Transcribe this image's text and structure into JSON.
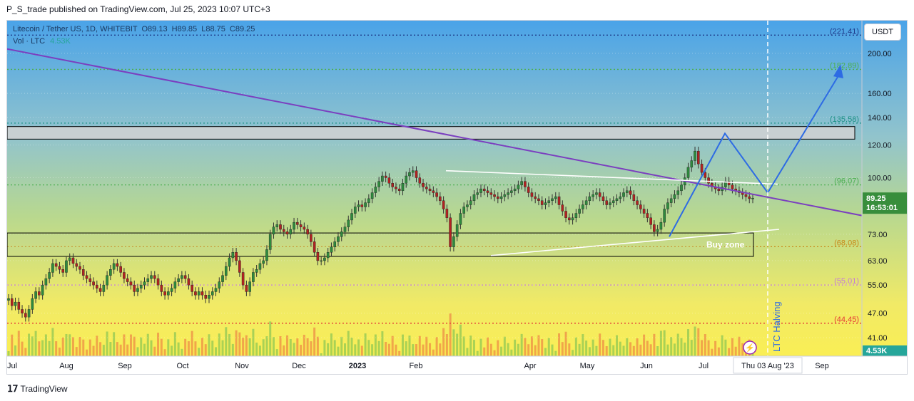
{
  "header": {
    "published_by": "P_S_trade published on TradingView.com, Jul 25, 2023 10:07 UTC+3"
  },
  "legend": {
    "symbol": "Litecoin / Tether US, 1D, WHITEBIT",
    "open": "O89.13",
    "high": "H89.85",
    "low": "L88.75",
    "close": "C89.25",
    "vol_label": "Vol · LTC",
    "vol_value": "4.53K"
  },
  "currency_button": "USDT",
  "footer": {
    "brand": "TradingView"
  },
  "colors": {
    "bg_top": "#5aa8e6",
    "bg_mid": "#9cc7a8",
    "bg_bottom": "#fcef5a",
    "up": "#2e8b3e",
    "down": "#b22222",
    "trendline": "#7b3fbf",
    "projection": "#2d6be4",
    "triangle": "#ffffff",
    "green_level": "#4caf50",
    "orange_level": "#c8891a",
    "pink_level": "#c77bd6",
    "red_level": "#e53935",
    "blue_level": "#1e3a8a",
    "price_badge": "#388e3c"
  },
  "chart_data": {
    "type": "candlestick",
    "title": "Litecoin / Tether US, 1D, WHITEBIT",
    "scale": "log",
    "ylim": [
      37,
      240
    ],
    "y_ticks": [
      "200.00",
      "160.00",
      "140.00",
      "120.00",
      "100.00",
      "73.00",
      "63.00",
      "55.00",
      "47.00",
      "41.00"
    ],
    "x_ticks": [
      "Jul",
      "Aug",
      "Sep",
      "Oct",
      "Nov",
      "Dec",
      "2023",
      "Feb",
      "Apr",
      "May",
      "Jun",
      "Jul",
      "Sep"
    ],
    "crosshair_date": "Thu 03 Aug '23",
    "current_price": "89.25",
    "countdown": "16:53:01",
    "volume_badge": "4.53K",
    "levels": [
      {
        "label": "(221.41)",
        "value": 221.41,
        "style": "dotted",
        "color": "blue"
      },
      {
        "label": "(182.89)",
        "value": 182.89,
        "style": "dotted",
        "color": "green"
      },
      {
        "label": "(135.58)",
        "value": 135.58,
        "style": "dotted",
        "color": "teal"
      },
      {
        "label": "(96.07)",
        "value": 96.07,
        "style": "dotted",
        "color": "green"
      },
      {
        "label": "(68.08)",
        "value": 68.08,
        "style": "dotted",
        "color": "orange"
      },
      {
        "label": "(55.01)",
        "value": 55.01,
        "style": "dotted",
        "color": "pink"
      },
      {
        "label": "(44.45)",
        "value": 44.45,
        "style": "dotted",
        "color": "red"
      }
    ],
    "zones": [
      {
        "label": "",
        "low": 124,
        "high": 133
      },
      {
        "label": "Buy zone",
        "low": 64.5,
        "high": 73.5
      }
    ],
    "annotations": [
      "Buy zone",
      "LTC Halving"
    ],
    "series": [
      {
        "name": "LTCUSDT",
        "values": [
          51,
          49,
          50,
          48,
          47,
          46,
          48,
          51,
          53,
          52,
          55,
          57,
          59,
          62,
          61,
          60,
          59,
          63,
          64,
          62,
          61,
          60,
          58,
          57,
          56,
          55,
          54,
          53,
          55,
          58,
          60,
          62,
          61,
          59,
          57,
          56,
          55,
          53,
          54,
          55,
          56,
          57,
          58,
          57,
          55,
          53,
          52,
          53,
          54,
          56,
          57,
          58,
          57,
          55,
          53,
          52,
          53,
          52,
          51,
          52,
          53,
          54,
          56,
          58,
          61,
          64,
          66,
          63,
          59,
          55,
          53,
          56,
          59,
          60,
          62,
          63,
          67,
          73,
          76,
          77,
          75,
          74,
          73,
          75,
          78,
          77,
          76,
          75,
          73,
          70,
          66,
          63,
          63,
          64,
          66,
          68,
          70,
          72,
          74,
          76,
          79,
          82,
          85,
          86,
          85,
          87,
          89,
          92,
          95,
          98,
          101,
          100,
          97,
          95,
          94,
          93,
          97,
          101,
          103,
          104,
          100,
          97,
          95,
          94,
          93,
          92,
          90,
          88,
          84,
          80,
          68,
          72,
          77,
          82,
          85,
          86,
          88,
          91,
          92,
          94,
          93,
          92,
          91,
          90,
          89,
          90,
          91,
          92,
          93,
          94,
          96,
          98,
          95,
          92,
          90,
          89,
          88,
          86,
          87,
          88,
          89,
          90,
          86,
          83,
          80,
          79,
          80,
          82,
          84,
          86,
          88,
          90,
          91,
          92,
          90,
          88,
          86,
          87,
          88,
          89,
          90,
          92,
          93,
          91,
          88,
          86,
          84,
          82,
          80,
          77,
          74,
          75,
          78,
          84,
          87,
          89,
          91,
          93,
          96,
          100,
          106,
          110,
          116,
          108,
          103,
          100,
          97,
          95,
          94,
          93,
          95,
          98,
          96,
          94,
          93,
          92,
          91,
          90,
          89,
          89.25
        ]
      }
    ]
  }
}
